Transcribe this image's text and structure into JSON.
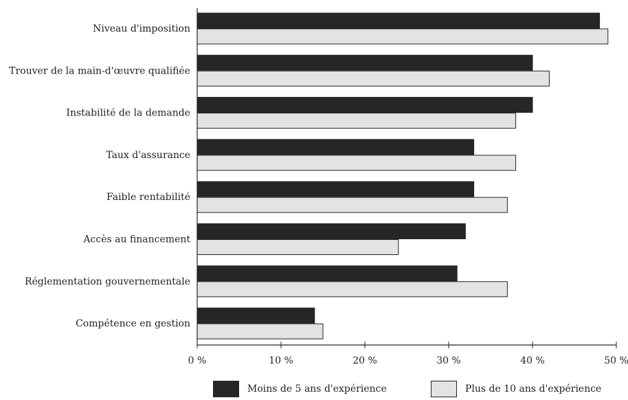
{
  "chart_data": {
    "type": "bar",
    "orientation": "horizontal",
    "categories": [
      "Niveau d'imposition",
      "Trouver de la main-d'œuvre qualifiée",
      "Instabilité de la demande",
      "Taux d'assurance",
      "Faible rentabilité",
      "Accès au financement",
      "Réglementation gouvernementale",
      "Compétence en gestion"
    ],
    "series": [
      {
        "name": "Moins de 5 ans d'expérience",
        "values": [
          48,
          40,
          40,
          33,
          33,
          32,
          31,
          14
        ],
        "color": "#262626"
      },
      {
        "name": "Plus de 10 ans d'expérience",
        "values": [
          49,
          42,
          38,
          38,
          37,
          24,
          37,
          15
        ],
        "color": "#e3e3e3"
      }
    ],
    "xlim": [
      0,
      50
    ],
    "ticks": [
      "0 %",
      "10 %",
      "20 %",
      "30 %",
      "40 %",
      "50 %"
    ],
    "xlabel": "",
    "ylabel": "",
    "grid": false,
    "legend_position": "bottom"
  }
}
